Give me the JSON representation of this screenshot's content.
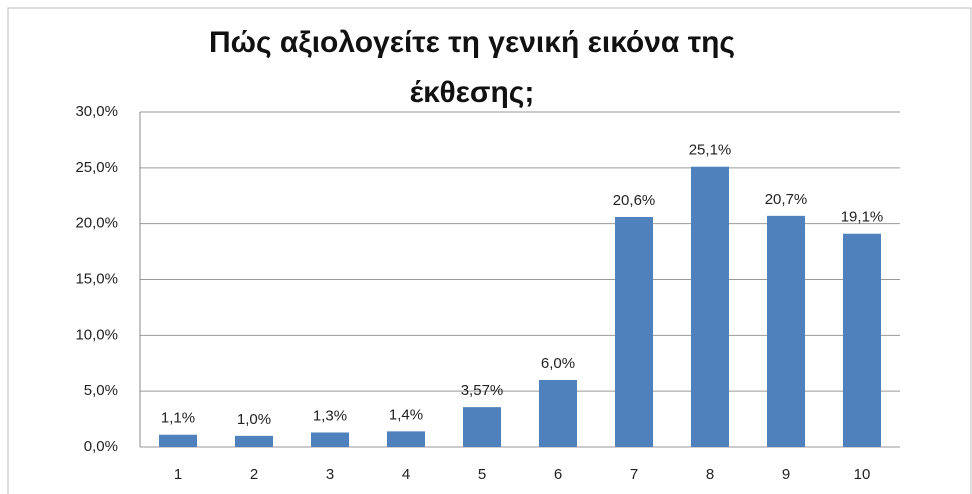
{
  "chart_data": {
    "type": "bar",
    "title": "Πώς αξιολογείτε τη γενική εικόνα της έκθεσης;",
    "categories": [
      "1",
      "2",
      "3",
      "4",
      "5",
      "6",
      "7",
      "8",
      "9",
      "10"
    ],
    "values": [
      1.1,
      1.0,
      1.3,
      1.4,
      3.57,
      6.0,
      20.6,
      25.1,
      20.7,
      19.1
    ],
    "value_labels": [
      "1,1%",
      "1,0%",
      "1,3%",
      "1,4%",
      "3,57%",
      "6,0%",
      "20,6%",
      "25,1%",
      "20,7%",
      "19,1%"
    ],
    "color": "#4f81bd",
    "ylim": [
      0,
      30
    ],
    "yticks": [
      {
        "value": 0,
        "label": "0,0%"
      },
      {
        "value": 5,
        "label": "5,0%"
      },
      {
        "value": 10,
        "label": "10,0%"
      },
      {
        "value": 15,
        "label": "15,0%"
      },
      {
        "value": 20,
        "label": "20,0%"
      },
      {
        "value": 25,
        "label": "25,0%"
      },
      {
        "value": 30,
        "label": "30,0%"
      }
    ],
    "grid": true
  }
}
